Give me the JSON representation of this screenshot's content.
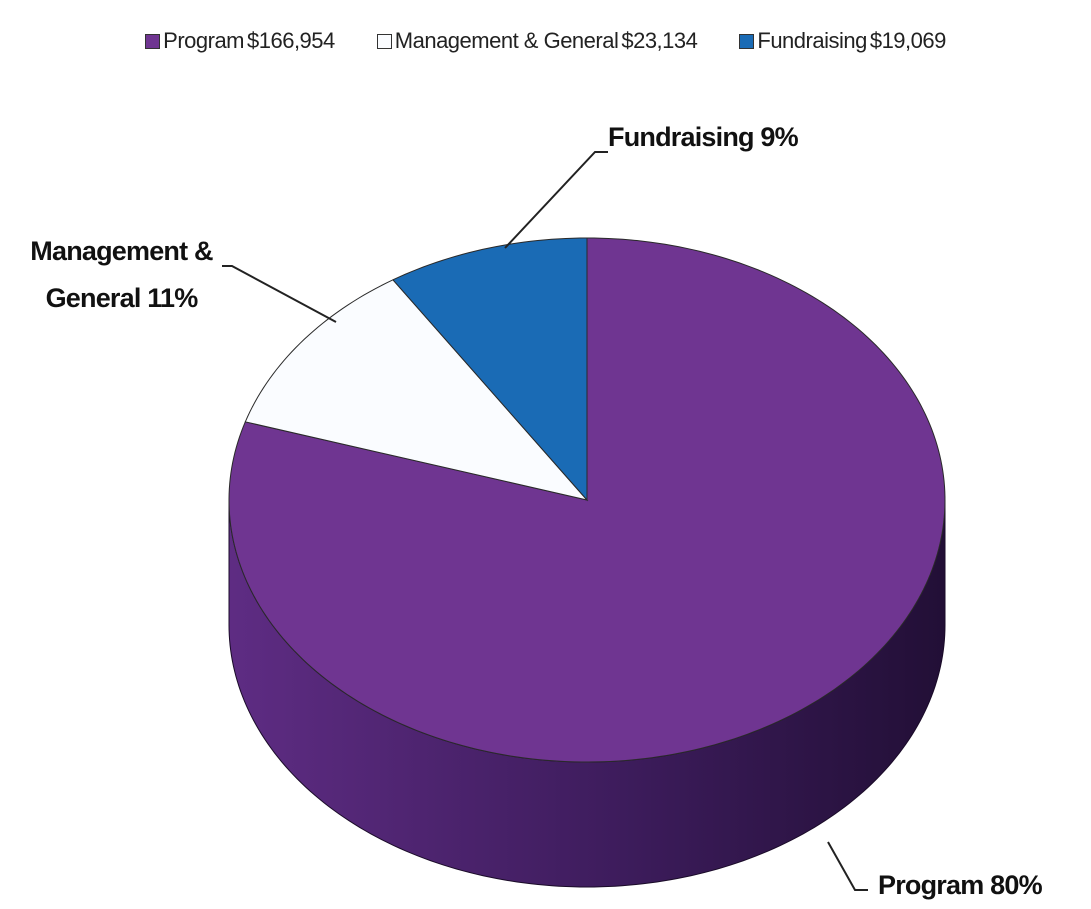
{
  "chart_data": {
    "type": "pie3d",
    "categories": [
      "Program",
      "Management & General",
      "Fundraising"
    ],
    "values": [
      166954,
      23134,
      19069
    ],
    "value_labels": [
      "$166,954",
      "$23,134",
      "$19,069"
    ],
    "percents": [
      80,
      11,
      9
    ],
    "percent_labels": [
      "80%",
      "11%",
      "9%"
    ],
    "colors": [
      "#6f3591",
      "#fafcff",
      "#1a6bb5"
    ],
    "legend": "top"
  }
}
